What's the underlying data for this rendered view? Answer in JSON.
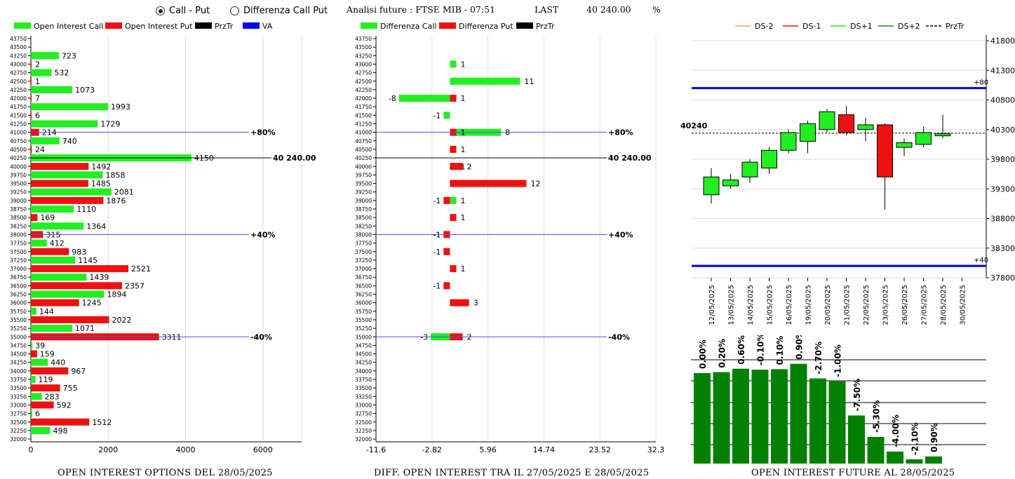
{
  "header": {
    "radio_call_put": "Call - Put",
    "radio_diff": "Differenza Call Put",
    "title": "Analisi future : FTSE MIB - 07:51",
    "last_label": "LAST",
    "last_value": "40 240.00",
    "pct": "%"
  },
  "chart_data": [
    {
      "type": "bar",
      "title": "OPEN INTEREST OPTIONS DEL 28/05/2025",
      "legend": [
        "Open Interest Call",
        "Open Interest Put",
        "PrzTr",
        "VA"
      ],
      "colors": {
        "call": "#22ee22",
        "put": "#ee1111",
        "line": "#4455dd"
      },
      "xlim": [
        0,
        7000
      ],
      "xticks": [
        "0",
        "2000",
        "4000",
        "6000"
      ],
      "strikes": [
        "43750",
        "43500",
        "43250",
        "43000",
        "42750",
        "42500",
        "42250",
        "42000",
        "41750",
        "41500",
        "41250",
        "41000",
        "40750",
        "40500",
        "40250",
        "40000",
        "39750",
        "39500",
        "39250",
        "39000",
        "38750",
        "38500",
        "38250",
        "38000",
        "37750",
        "37500",
        "37250",
        "37000",
        "36750",
        "36500",
        "36250",
        "36000",
        "35750",
        "35500",
        "35250",
        "35000",
        "34750",
        "34500",
        "34250",
        "34000",
        "33750",
        "33500",
        "33250",
        "33000",
        "32750",
        "32500",
        "32250",
        "32000"
      ],
      "call": [
        null,
        null,
        723,
        null,
        532,
        null,
        1073,
        null,
        1993,
        null,
        1729,
        null,
        740,
        null,
        4150,
        null,
        1858,
        null,
        2081,
        null,
        1110,
        null,
        1364,
        null,
        412,
        null,
        1145,
        null,
        1439,
        null,
        1894,
        null,
        144,
        null,
        1071,
        null,
        39,
        null,
        440,
        null,
        119,
        null,
        283,
        null,
        6,
        null,
        498,
        null
      ],
      "put": [
        null,
        null,
        null,
        2,
        null,
        1,
        null,
        7,
        null,
        6,
        null,
        214,
        null,
        24,
        null,
        1492,
        null,
        1485,
        null,
        1876,
        null,
        169,
        null,
        315,
        null,
        983,
        null,
        2521,
        null,
        2357,
        null,
        1245,
        null,
        2022,
        null,
        3311,
        null,
        159,
        null,
        967,
        null,
        755,
        null,
        592,
        null,
        1512,
        null,
        null
      ],
      "markers": [
        {
          "strike": "41000",
          "label": "+80%"
        },
        {
          "strike": "40250",
          "label": "40 240.00"
        },
        {
          "strike": "38000",
          "label": "+40%"
        },
        {
          "strike": "35000",
          "label": "-40%"
        }
      ]
    },
    {
      "type": "bar",
      "title": "DIFF. OPEN INTEREST TRA IL 27/05/2025 E 28/05/2025",
      "legend": [
        "Differenza Call",
        "Differenza Put",
        "PrzTr"
      ],
      "xlim": [
        -11.6,
        32.3
      ],
      "xticks": [
        "-11.6",
        "-2.82",
        "5.96",
        "14.74",
        "23.52",
        "32.3"
      ],
      "call": [
        null,
        null,
        null,
        1,
        null,
        11,
        null,
        -8,
        null,
        -1,
        null,
        8,
        null,
        null,
        null,
        1,
        null,
        1,
        null,
        1,
        null,
        null,
        null,
        -1,
        null,
        null,
        null,
        null,
        null,
        null,
        null,
        null,
        null,
        null,
        null,
        -3,
        null,
        null,
        null,
        null,
        null,
        null,
        null,
        null,
        null,
        null,
        null,
        null
      ],
      "put": [
        null,
        null,
        null,
        null,
        null,
        null,
        null,
        1,
        null,
        null,
        null,
        1,
        null,
        1,
        null,
        2,
        null,
        12,
        null,
        -1,
        null,
        1,
        null,
        -1,
        null,
        -1,
        null,
        1,
        null,
        -1,
        null,
        3,
        null,
        null,
        null,
        2,
        null,
        null,
        null,
        null,
        null,
        null,
        null,
        null,
        null,
        null,
        null,
        null
      ],
      "markers": [
        {
          "strike": "41000",
          "label": "+80%"
        },
        {
          "strike": "40250",
          "label": "40 240.00"
        },
        {
          "strike": "38000",
          "label": "+40%"
        },
        {
          "strike": "35000",
          "label": "-40%"
        }
      ]
    },
    {
      "type": "candlestick",
      "legend": [
        "DS-2",
        "DS-1",
        "DS+1",
        "DS+2",
        "PrzTr"
      ],
      "legend_colors": [
        "#f0a070",
        "#ee1111",
        "#22ee22",
        "#118811",
        "#000000"
      ],
      "ylim": [
        37800,
        41800
      ],
      "yticks": [
        "41800",
        "41300",
        "40800",
        "40300",
        "39800",
        "39300",
        "38800",
        "38300",
        "37800"
      ],
      "last": {
        "value": 40240,
        "label": "40240"
      },
      "bands": [
        {
          "value": 41000,
          "label": "+80"
        },
        {
          "value": 38000,
          "label": "+40"
        }
      ],
      "dates": [
        "12/05/2025",
        "13/05/2025",
        "14/05/2025",
        "15/05/2025",
        "16/05/2025",
        "19/05/2025",
        "20/05/2025",
        "21/05/2025",
        "22/05/2025",
        "23/05/2025",
        "26/05/2025",
        "27/05/2025",
        "28/05/2025",
        "30/05/2025"
      ],
      "candles": [
        {
          "o": 39200,
          "c": 39500,
          "h": 39650,
          "l": 39050
        },
        {
          "o": 39350,
          "c": 39450,
          "h": 39550,
          "l": 39300
        },
        {
          "o": 39500,
          "c": 39750,
          "h": 39800,
          "l": 39400
        },
        {
          "o": 39650,
          "c": 39950,
          "h": 40000,
          "l": 39550
        },
        {
          "o": 39950,
          "c": 40250,
          "h": 40300,
          "l": 39900
        },
        {
          "o": 40100,
          "c": 40400,
          "h": 40450,
          "l": 39900
        },
        {
          "o": 40300,
          "c": 40600,
          "h": 40650,
          "l": 40250
        },
        {
          "o": 40550,
          "c": 40250,
          "h": 40700,
          "l": 40200
        },
        {
          "o": 40300,
          "c": 40380,
          "h": 40500,
          "l": 40100
        },
        {
          "o": 40380,
          "c": 39500,
          "h": 40400,
          "l": 38950
        },
        {
          "o": 40000,
          "c": 40080,
          "h": 40150,
          "l": 39850
        },
        {
          "o": 40050,
          "c": 40250,
          "h": 40350,
          "l": 40000
        },
        {
          "o": 40200,
          "c": 40230,
          "h": 40550,
          "l": 40150
        },
        null
      ]
    },
    {
      "type": "bar",
      "title": "OPEN INTEREST FUTURE AL 28/05/2025",
      "values": [
        0.0,
        0.2,
        0.6,
        -0.1,
        0.1,
        0.9,
        -2.7,
        -1.0,
        -7.5,
        -5.3,
        -4.0,
        -2.1,
        0.9
      ],
      "labels": [
        "0.00%",
        "0.20%",
        "0.60%",
        "-0.10%",
        "0.10%",
        "0.90%",
        "-2.70%",
        "-1.00%",
        "-7.50%",
        "-5.30%",
        "-4.00%",
        "-2.10%",
        "0.90%"
      ],
      "oi_level": [
        0.885,
        0.895,
        0.93,
        0.92,
        0.925,
        0.98,
        0.83,
        0.8,
        0.45,
        0.23,
        0.08,
        0.0,
        0.03
      ]
    }
  ]
}
